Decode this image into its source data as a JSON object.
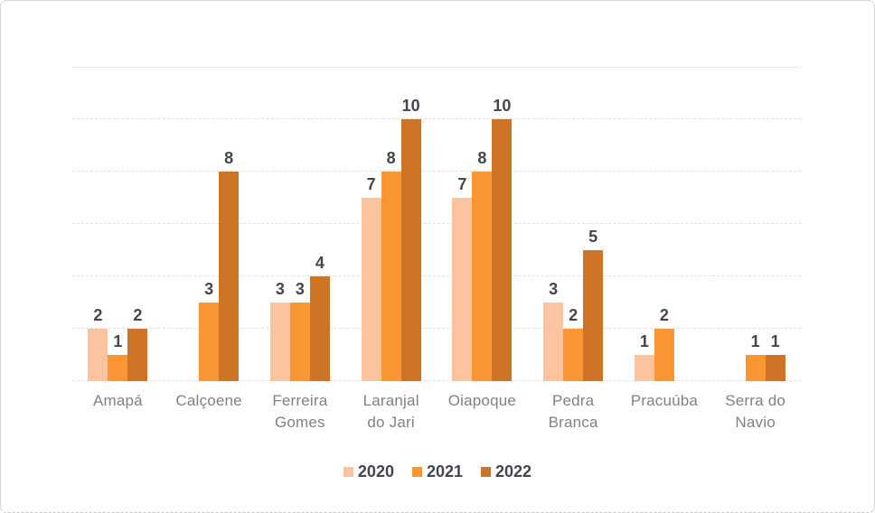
{
  "chart_data": {
    "type": "bar",
    "title": "",
    "xlabel": "",
    "ylabel": "",
    "categories": [
      "Amapá",
      "Calçoene",
      "Ferreira Gomes",
      "Laranjal do Jari",
      "Oiapoque",
      "Pedra Branca",
      "Pracuúba",
      "Serra do Navio"
    ],
    "categories_wrapped": [
      "Amapá",
      "Calçoene",
      "Ferreira\nGomes",
      "Laranjal\ndo Jari",
      "Oiapoque",
      "Pedra\nBranca",
      "Pracuúba",
      "Serra do\nNavio"
    ],
    "series": [
      {
        "name": "2020",
        "color": "#FBC3A0",
        "values": [
          2,
          0,
          3,
          7,
          7,
          3,
          1,
          0
        ]
      },
      {
        "name": "2021",
        "color": "#FA9634",
        "values": [
          1,
          3,
          3,
          8,
          8,
          2,
          2,
          1
        ]
      },
      {
        "name": "2022",
        "color": "#CE7426",
        "values": [
          2,
          8,
          4,
          10,
          10,
          5,
          0,
          1
        ]
      }
    ],
    "ylim": [
      0,
      12
    ],
    "grid_step": 2,
    "grid": "dashed-horizontal",
    "y_axis_labels_shown": false,
    "data_labels_shown": true,
    "legend_position": "bottom"
  },
  "styles": {
    "background": "#FFFFFF",
    "card_border_color": "#D7D7D7",
    "grid_color": "#E2E2E2",
    "value_label_color": "#43454F",
    "category_label_color": "#7F8187"
  }
}
